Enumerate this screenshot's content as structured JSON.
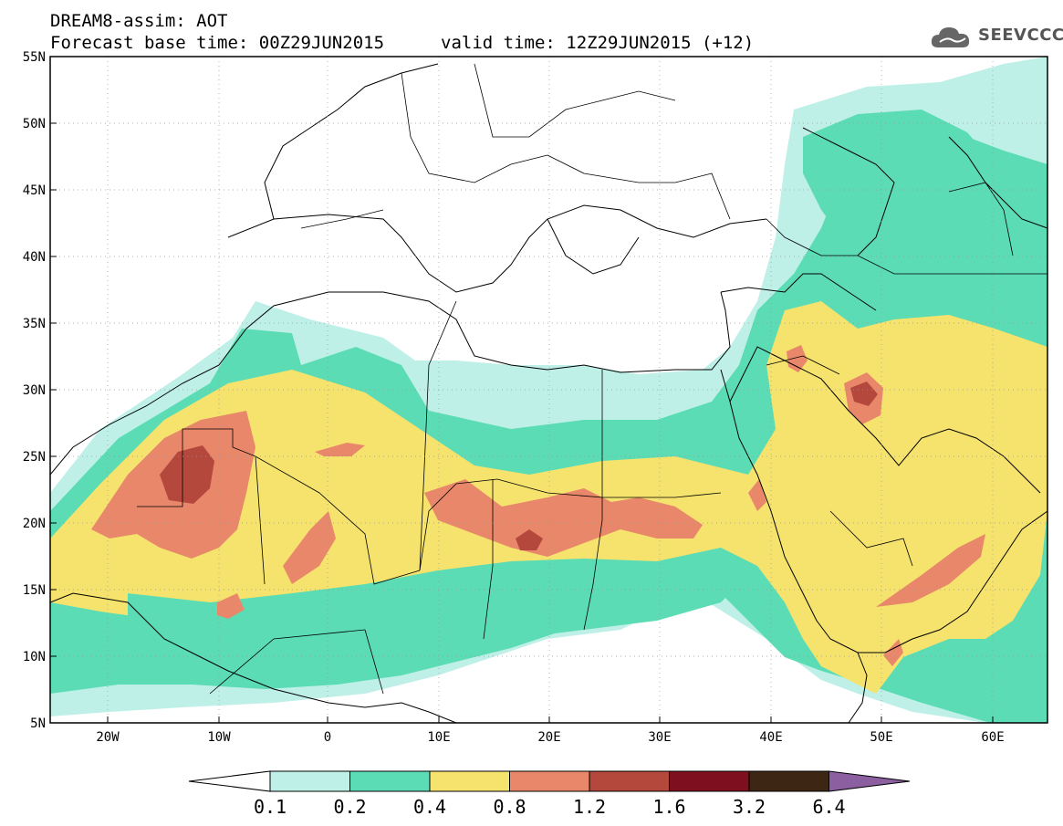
{
  "title": {
    "line1": "DREAM8-assim: AOT",
    "line2": "Forecast base time: 00Z29JUN2015",
    "valid": "valid time: 12Z29JUN2015 (+12)"
  },
  "logo": {
    "text": "SEEVCCC",
    "icon": "cloud-icon"
  },
  "map": {
    "lon_range": [
      -25,
      65
    ],
    "lat_range": [
      5,
      55
    ],
    "lat_ticks": [
      "55N",
      "50N",
      "45N",
      "40N",
      "35N",
      "30N",
      "25N",
      "20N",
      "15N",
      "10N",
      "5N"
    ],
    "lon_ticks": [
      "20W",
      "10W",
      "0",
      "10E",
      "20E",
      "30E",
      "40E",
      "50E",
      "60E"
    ],
    "grid": "dotted"
  },
  "colorbar": {
    "labels": [
      "0.1",
      "0.2",
      "0.4",
      "0.8",
      "1.2",
      "1.6",
      "3.2",
      "6.4"
    ],
    "colors": [
      "#ffffff",
      "#bff0e8",
      "#5bdcb4",
      "#f5e36e",
      "#e8876a",
      "#b5483c",
      "#7d0f1e",
      "#3d2614",
      "#8b5fa0"
    ]
  }
}
